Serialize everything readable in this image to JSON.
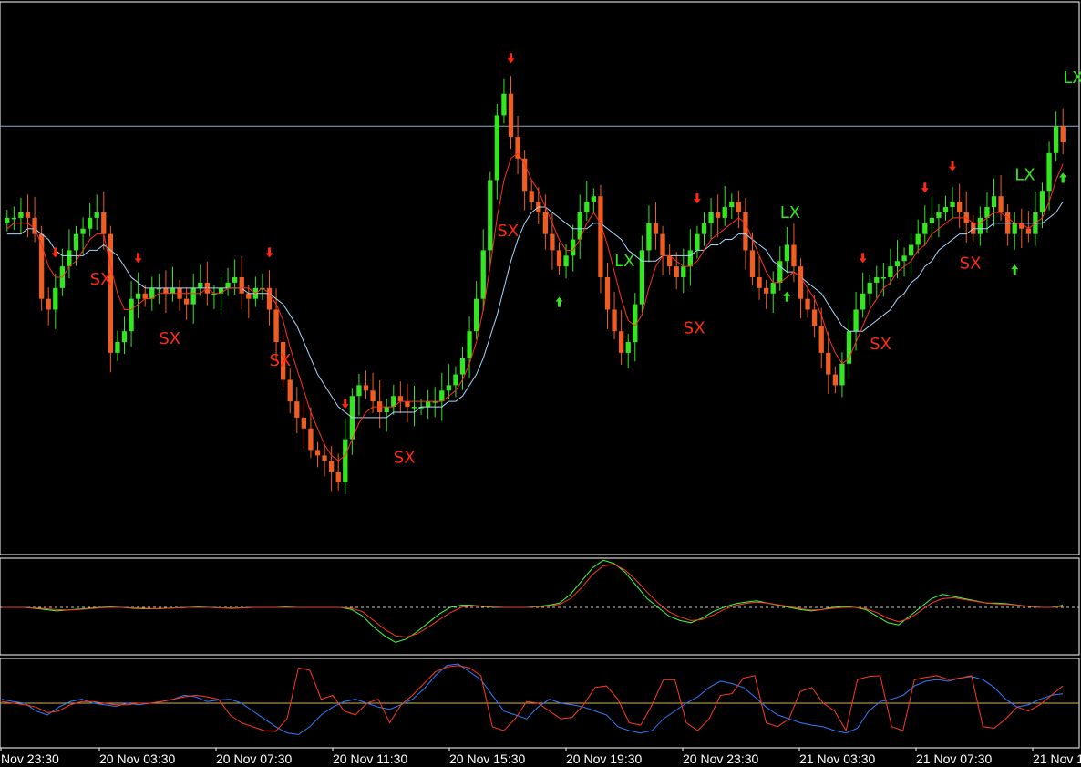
{
  "colors": {
    "background": "#000000",
    "border": "#ffffff",
    "bull_candle": "#33e61f",
    "bear_candle": "#f05d23",
    "ma_fast": "#ff3020",
    "ma_slow": "#a8d8ff",
    "level_line": "#8fa8c8",
    "short_signal": "#ff2a10",
    "long_signal": "#33e61f",
    "zero_line": "#c8c8c8",
    "osc_green": "#3cff3c",
    "osc_red": "#ff3a20",
    "stoch_blue": "#2f7dff",
    "stoch_red": "#ff3a20",
    "stoch_level": "#d4b060"
  },
  "chart_data": [
    {
      "type": "candlestick",
      "description_of_series": "price candles with two moving averages and exit signals",
      "x_ticks": [
        "Nov 23:30",
        "20 Nov 03:30",
        "20 Nov 07:30",
        "20 Nov 11:30",
        "20 Nov 15:30",
        "20 Nov 19:30",
        "20 Nov 23:30",
        "21 Nov 03:30",
        "21 Nov 07:30",
        "21 Nov 1"
      ],
      "ylim": [
        0,
        100
      ],
      "level_line": 78,
      "close": [
        61,
        61,
        62,
        61,
        58,
        46,
        44,
        48,
        52,
        55,
        58,
        59,
        61,
        62,
        58,
        36,
        38,
        40,
        46,
        47,
        46,
        48,
        48,
        47,
        48,
        46,
        45,
        48,
        49,
        47,
        47,
        48,
        49,
        50,
        47,
        46,
        48,
        48,
        44,
        38,
        31,
        27,
        24,
        22,
        18,
        17,
        16,
        14,
        12,
        20,
        28,
        30,
        29,
        27,
        25,
        26,
        28,
        27,
        26,
        26,
        26,
        27,
        27,
        29,
        30,
        32,
        35,
        40,
        46,
        55,
        68,
        80,
        84,
        76,
        72,
        66,
        64,
        62,
        58,
        55,
        52,
        54,
        57,
        62,
        64,
        65,
        50,
        44,
        40,
        36,
        38,
        45,
        55,
        60,
        58,
        54,
        52,
        50,
        52,
        55,
        58,
        60,
        62,
        61,
        63,
        64,
        62,
        55,
        50,
        48,
        47,
        49,
        53,
        56,
        52,
        46,
        44,
        41,
        36,
        32,
        30,
        34,
        40,
        44,
        47,
        49,
        50,
        50,
        52,
        53,
        54,
        56,
        58,
        60,
        61,
        62,
        63,
        64,
        62,
        60,
        58,
        61,
        63,
        65,
        62,
        58,
        60,
        59,
        58,
        62,
        66,
        73,
        78,
        75
      ],
      "open": [
        60,
        61,
        61,
        62,
        61,
        58,
        46,
        44,
        48,
        52,
        55,
        58,
        59,
        61,
        62,
        58,
        36,
        38,
        40,
        46,
        47,
        46,
        48,
        48,
        47,
        48,
        46,
        45,
        48,
        49,
        47,
        47,
        48,
        49,
        50,
        47,
        46,
        48,
        48,
        44,
        38,
        31,
        27,
        24,
        22,
        18,
        17,
        16,
        14,
        12,
        20,
        28,
        30,
        29,
        27,
        25,
        26,
        28,
        27,
        26,
        26,
        26,
        27,
        27,
        29,
        30,
        32,
        35,
        40,
        46,
        55,
        68,
        80,
        84,
        76,
        72,
        66,
        64,
        62,
        58,
        55,
        52,
        54,
        57,
        62,
        64,
        65,
        50,
        44,
        40,
        36,
        38,
        45,
        55,
        60,
        58,
        54,
        52,
        50,
        52,
        55,
        58,
        60,
        62,
        61,
        63,
        64,
        62,
        55,
        50,
        48,
        47,
        49,
        53,
        56,
        52,
        46,
        44,
        41,
        36,
        32,
        30,
        34,
        40,
        44,
        47,
        49,
        50,
        50,
        52,
        53,
        54,
        56,
        58,
        60,
        61,
        62,
        63,
        64,
        62,
        60,
        58,
        61,
        63,
        65,
        62,
        58,
        60,
        59,
        58,
        62,
        66,
        73,
        78
      ],
      "ma_fast": [
        59,
        60,
        60,
        60,
        59,
        56,
        52,
        50,
        50,
        52,
        53,
        55,
        57,
        58,
        58,
        52,
        47,
        44,
        44,
        45,
        46,
        46,
        47,
        47,
        47,
        47,
        47,
        47,
        47,
        48,
        47,
        47,
        48,
        48,
        48,
        48,
        47,
        48,
        47,
        45,
        42,
        37,
        33,
        29,
        25,
        22,
        19,
        17,
        16,
        17,
        20,
        23,
        25,
        26,
        26,
        26,
        26,
        27,
        27,
        27,
        27,
        27,
        27,
        27,
        28,
        29,
        31,
        34,
        38,
        44,
        52,
        61,
        68,
        72,
        73,
        71,
        68,
        66,
        63,
        60,
        57,
        55,
        55,
        57,
        60,
        62,
        60,
        56,
        51,
        46,
        42,
        41,
        43,
        48,
        52,
        54,
        54,
        53,
        52,
        52,
        53,
        55,
        57,
        58,
        59,
        60,
        61,
        60,
        57,
        54,
        51,
        49,
        49,
        50,
        51,
        50,
        48,
        46,
        43,
        39,
        36,
        34,
        35,
        38,
        41,
        44,
        46,
        48,
        49,
        51,
        52,
        53,
        55,
        56,
        58,
        59,
        60,
        61,
        61,
        61,
        60,
        60,
        61,
        62,
        62,
        61,
        60,
        60,
        59,
        60,
        61,
        64,
        68,
        71
      ],
      "ma_slow": [
        58,
        58,
        58,
        59,
        59,
        58,
        57,
        55,
        54,
        54,
        54,
        54,
        55,
        55,
        56,
        55,
        54,
        52,
        50,
        49,
        48,
        48,
        48,
        48,
        48,
        48,
        48,
        48,
        48,
        48,
        48,
        48,
        48,
        48,
        48,
        47,
        47,
        47,
        47,
        46,
        45,
        43,
        41,
        38,
        35,
        32,
        30,
        28,
        26,
        25,
        24,
        24,
        24,
        24,
        24,
        24,
        25,
        25,
        25,
        25,
        26,
        26,
        26,
        26,
        27,
        27,
        28,
        30,
        32,
        35,
        39,
        43,
        48,
        53,
        57,
        60,
        62,
        63,
        63,
        62,
        61,
        60,
        59,
        59,
        59,
        60,
        60,
        59,
        58,
        57,
        55,
        54,
        53,
        53,
        53,
        54,
        54,
        54,
        54,
        54,
        55,
        55,
        56,
        56,
        57,
        57,
        58,
        58,
        57,
        56,
        55,
        53,
        52,
        51,
        51,
        50,
        49,
        48,
        47,
        45,
        43,
        41,
        40,
        40,
        40,
        41,
        42,
        43,
        44,
        46,
        47,
        49,
        50,
        52,
        53,
        55,
        56,
        57,
        58,
        58,
        59,
        59,
        59,
        60,
        60,
        60,
        60,
        60,
        60,
        60,
        60,
        61,
        62,
        64
      ]
    },
    {
      "type": "line",
      "description_of_series": "oscillator pane with zero line",
      "ylim": [
        -1,
        1
      ],
      "zero": 0,
      "series": [
        {
          "color": "#3cff3c",
          "values": [
            0,
            0,
            0,
            -0.02,
            -0.05,
            -0.08,
            -0.06,
            -0.04,
            -0.02,
            0,
            0.01,
            0,
            -0.02,
            -0.03,
            -0.03,
            -0.02,
            -0.01,
            0,
            0.01,
            0,
            -0.01,
            -0.02,
            -0.01,
            0,
            0,
            0,
            0.01,
            0,
            0,
            0,
            0,
            0,
            -0.05,
            -0.2,
            -0.45,
            -0.65,
            -0.8,
            -0.72,
            -0.55,
            -0.35,
            -0.15,
            0,
            0.05,
            0.05,
            0.02,
            0,
            0,
            0,
            0,
            0.02,
            0.05,
            0.1,
            0.3,
            0.6,
            0.9,
            1.08,
            1.0,
            0.8,
            0.5,
            0.2,
            0,
            -0.2,
            -0.3,
            -0.35,
            -0.25,
            -0.1,
            0,
            0.08,
            0.12,
            0.15,
            0.1,
            0.05,
            0,
            -0.05,
            -0.08,
            -0.05,
            0,
            0.02,
            0,
            -0.05,
            -0.2,
            -0.35,
            -0.4,
            -0.2,
            0,
            0.2,
            0.3,
            0.25,
            0.2,
            0.15,
            0.1,
            0.1,
            0.08,
            0.05,
            0.02,
            0,
            0,
            0.05
          ]
        },
        {
          "color": "#ff3a20",
          "values": [
            0,
            0,
            0,
            -0.01,
            -0.03,
            -0.05,
            -0.06,
            -0.05,
            -0.03,
            -0.01,
            0,
            0,
            -0.01,
            -0.02,
            -0.03,
            -0.02,
            -0.01,
            0,
            0,
            0,
            -0.01,
            -0.01,
            -0.01,
            0,
            0,
            0,
            0,
            0,
            0,
            0,
            0,
            0,
            -0.02,
            -0.1,
            -0.3,
            -0.5,
            -0.65,
            -0.68,
            -0.6,
            -0.45,
            -0.28,
            -0.12,
            0,
            0.04,
            0.03,
            0.01,
            0,
            0,
            0,
            0.01,
            0.03,
            0.07,
            0.2,
            0.45,
            0.75,
            0.95,
            0.98,
            0.85,
            0.62,
            0.35,
            0.1,
            -0.1,
            -0.22,
            -0.3,
            -0.28,
            -0.18,
            -0.05,
            0.04,
            0.09,
            0.12,
            0.1,
            0.06,
            0.02,
            -0.03,
            -0.06,
            -0.05,
            -0.02,
            0,
            0,
            -0.03,
            -0.12,
            -0.25,
            -0.33,
            -0.25,
            -0.08,
            0.1,
            0.2,
            0.22,
            0.18,
            0.14,
            0.1,
            0.08,
            0.07,
            0.05,
            0.02,
            0,
            0,
            0.02
          ]
        }
      ]
    },
    {
      "type": "line",
      "description_of_series": "stochastic-style pane with level line",
      "ylim": [
        0,
        100
      ],
      "level": 50,
      "series": [
        {
          "color": "#2f7dff",
          "values": [
            55,
            52,
            50,
            40,
            35,
            45,
            52,
            55,
            50,
            48,
            46,
            50,
            48,
            50,
            52,
            55,
            60,
            58,
            52,
            54,
            55,
            50,
            40,
            30,
            20,
            12,
            10,
            20,
            35,
            45,
            52,
            55,
            50,
            45,
            42,
            48,
            55,
            68,
            85,
            98,
            100,
            90,
            80,
            60,
            40,
            35,
            30,
            45,
            55,
            50,
            48,
            45,
            40,
            35,
            20,
            15,
            12,
            15,
            30,
            40,
            50,
            58,
            70,
            78,
            75,
            70,
            58,
            45,
            35,
            30,
            25,
            22,
            20,
            15,
            12,
            18,
            40,
            52,
            55,
            60,
            72,
            78,
            80,
            78,
            82,
            84,
            80,
            70,
            55,
            45,
            48,
            55,
            60,
            62
          ]
        },
        {
          "color": "#ff3a20",
          "values": [
            52,
            50,
            48,
            45,
            38,
            40,
            48,
            52,
            52,
            50,
            48,
            48,
            50,
            50,
            52,
            55,
            58,
            60,
            58,
            55,
            35,
            25,
            20,
            15,
            14,
            30,
            95,
            92,
            55,
            60,
            40,
            35,
            50,
            55,
            25,
            48,
            60,
            75,
            90,
            96,
            98,
            95,
            85,
            20,
            15,
            30,
            52,
            50,
            40,
            30,
            32,
            48,
            70,
            72,
            55,
            25,
            22,
            48,
            80,
            80,
            25,
            15,
            30,
            60,
            62,
            82,
            85,
            25,
            20,
            30,
            65,
            70,
            50,
            40,
            15,
            80,
            84,
            85,
            20,
            15,
            80,
            83,
            85,
            80,
            82,
            85,
            20,
            18,
            30,
            45,
            40,
            48,
            60,
            72
          ]
        }
      ]
    }
  ],
  "signals": [
    {
      "label": "SX",
      "kind": "short",
      "bar": 12
    },
    {
      "label": "SX",
      "kind": "short",
      "bar": 22
    },
    {
      "label": "SX",
      "kind": "short",
      "bar": 38
    },
    {
      "label": "SX",
      "kind": "short",
      "bar": 56
    },
    {
      "label": "SX",
      "kind": "short",
      "bar": 71
    },
    {
      "label": "LX",
      "kind": "long",
      "bar": 88
    },
    {
      "label": "SX",
      "kind": "short",
      "bar": 98
    },
    {
      "label": "LX",
      "kind": "long",
      "bar": 112
    },
    {
      "label": "SX",
      "kind": "short",
      "bar": 125
    },
    {
      "label": "SX",
      "kind": "short",
      "bar": 138
    },
    {
      "label": "LX",
      "kind": "long",
      "bar": 146
    },
    {
      "label": "LX",
      "kind": "long",
      "bar": 153
    }
  ],
  "arrows": [
    {
      "kind": "down",
      "bar": 7
    },
    {
      "kind": "down",
      "bar": 19
    },
    {
      "kind": "down",
      "bar": 38
    },
    {
      "kind": "down",
      "bar": 49
    },
    {
      "kind": "down",
      "bar": 73
    },
    {
      "kind": "up",
      "bar": 80
    },
    {
      "kind": "down",
      "bar": 100
    },
    {
      "kind": "up",
      "bar": 113
    },
    {
      "kind": "down",
      "bar": 124
    },
    {
      "kind": "down",
      "bar": 133
    },
    {
      "kind": "down",
      "bar": 137
    },
    {
      "kind": "up",
      "bar": 146
    },
    {
      "kind": "up",
      "bar": 160
    },
    {
      "kind": "up",
      "bar": 176
    }
  ]
}
